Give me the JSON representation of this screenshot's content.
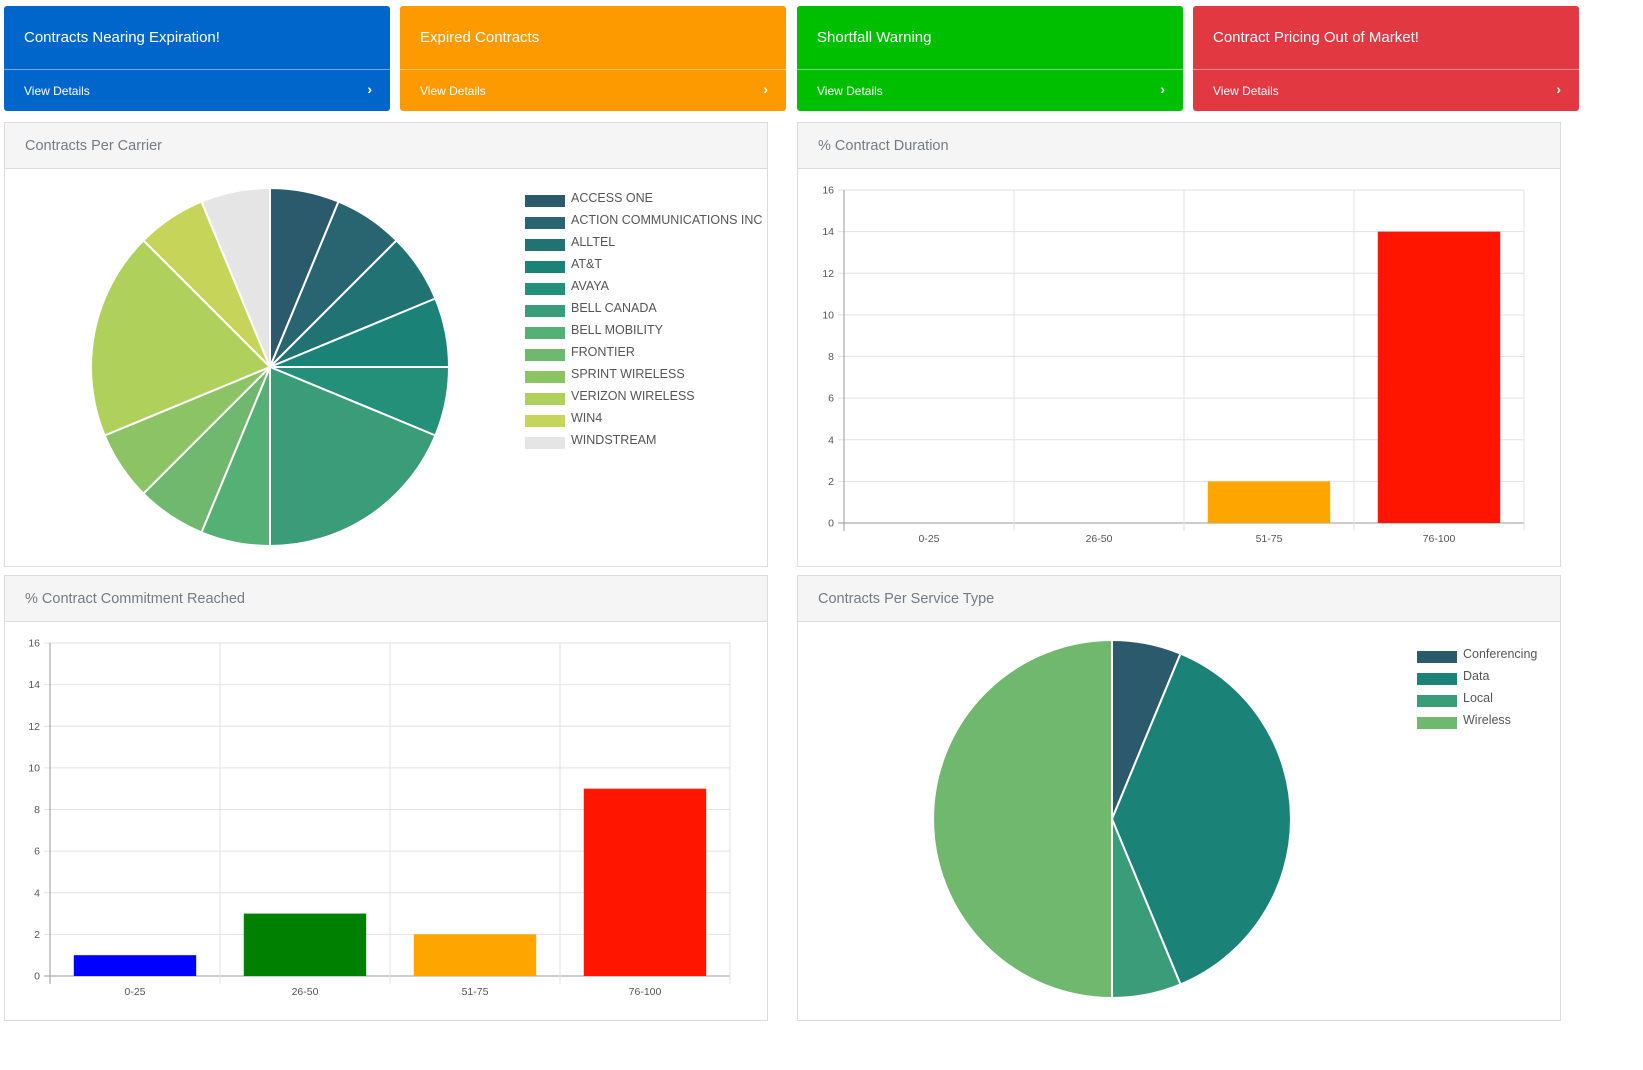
{
  "cards": [
    {
      "title": "Contracts Nearing Expiration!",
      "link": "View Details",
      "color": "#0066cc"
    },
    {
      "title": "Expired Contracts",
      "link": "View Details",
      "color": "#fd9a00"
    },
    {
      "title": "Shortfall Warning",
      "link": "View Details",
      "color": "#00bf00"
    },
    {
      "title": "Contract Pricing Out of Market!",
      "link": "View Details",
      "color": "#e13842"
    }
  ],
  "panels": {
    "carrier": {
      "title": "Contracts Per Carrier"
    },
    "duration": {
      "title": "% Contract Duration"
    },
    "commitment": {
      "title": "% Contract Commitment Reached"
    },
    "service": {
      "title": "Contracts Per Service Type"
    }
  },
  "chart_data": [
    {
      "type": "pie",
      "title": "Contracts Per Carrier",
      "categories": [
        "ACCESS ONE",
        "ACTION COMMUNICATIONS INC",
        "ALLTEL",
        "AT&T",
        "AVAYA",
        "BELL CANADA",
        "BELL MOBILITY",
        "FRONTIER",
        "SPRINT WIRELESS",
        "VERIZON WIRELESS",
        "WIN4",
        "WINDSTREAM"
      ],
      "values": [
        1,
        1,
        1,
        1,
        1,
        3,
        1,
        1,
        1,
        3,
        1,
        1
      ],
      "colors": [
        "#2c5a6d",
        "#286570",
        "#217373",
        "#1b8277",
        "#259079",
        "#3a9c79",
        "#55b075",
        "#6fb86d",
        "#8cc465",
        "#b0d05c",
        "#c6d559",
        "#e5e5e5"
      ],
      "legend": "right"
    },
    {
      "type": "bar",
      "title": "% Contract Duration",
      "categories": [
        "0-25",
        "26-50",
        "51-75",
        "76-100"
      ],
      "values": [
        0,
        0,
        2,
        14
      ],
      "colors": [
        "#0000ff",
        "#008000",
        "#ffa500",
        "#ff1500"
      ],
      "ylim": [
        0,
        16
      ],
      "yticks": [
        0,
        2,
        4,
        6,
        8,
        10,
        12,
        14,
        16
      ],
      "grid": true
    },
    {
      "type": "bar",
      "title": "% Contract Commitment Reached",
      "categories": [
        "0-25",
        "26-50",
        "51-75",
        "76-100"
      ],
      "values": [
        1,
        3,
        2,
        9
      ],
      "colors": [
        "#0000ff",
        "#008000",
        "#ffa500",
        "#ff1500"
      ],
      "ylim": [
        0,
        16
      ],
      "yticks": [
        0,
        2,
        4,
        6,
        8,
        10,
        12,
        14,
        16
      ],
      "grid": true
    },
    {
      "type": "pie",
      "title": "Contracts Per Service Type",
      "categories": [
        "Conferencing",
        "Data",
        "Local",
        "Wireless"
      ],
      "values": [
        1,
        6,
        1,
        8
      ],
      "colors": [
        "#2c5a6d",
        "#1b8277",
        "#3a9c79",
        "#6fb86d"
      ],
      "legend": "right"
    }
  ]
}
